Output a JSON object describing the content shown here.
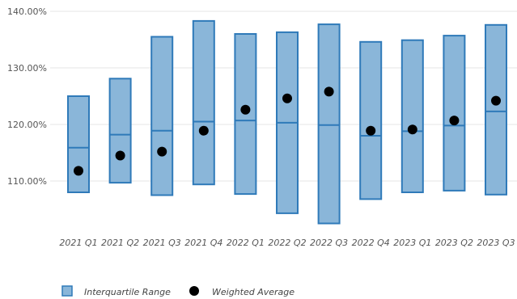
{
  "chart_data": {
    "type": "boxplot",
    "title": "",
    "xlabel": "",
    "ylabel": "",
    "ylim": [
      102,
      140
    ],
    "yticks": [
      110,
      120,
      130,
      140
    ],
    "ytick_labels": [
      "110.00%",
      "120.00%",
      "130.00%",
      "140.00%"
    ],
    "grid": true,
    "legend_position": "bottom-left",
    "categories": [
      "2021 Q1",
      "2021 Q2",
      "2021 Q3",
      "2021 Q4",
      "2022 Q1",
      "2022 Q2",
      "2022 Q3",
      "2022 Q4",
      "2023 Q1",
      "2023 Q2",
      "2023 Q3"
    ],
    "series": [
      {
        "name": "Interquartile Range",
        "low": [
          108.0,
          109.7,
          107.5,
          109.4,
          107.7,
          104.3,
          102.5,
          106.8,
          108.0,
          108.3,
          107.6
        ],
        "median": [
          115.9,
          118.2,
          118.9,
          120.5,
          120.7,
          120.3,
          119.9,
          118.0,
          118.8,
          119.8,
          122.3
        ],
        "high": [
          125.0,
          128.1,
          135.5,
          138.3,
          136.0,
          136.3,
          137.7,
          134.6,
          134.9,
          135.7,
          137.6
        ]
      },
      {
        "name": "Weighted Average",
        "values": [
          111.8,
          114.5,
          115.2,
          118.9,
          122.6,
          124.6,
          125.8,
          118.9,
          119.1,
          120.7,
          124.2
        ]
      }
    ],
    "colors": {
      "box_fill": "#8ab6d9",
      "box_stroke": "#2f7ab9",
      "marker": "#000000",
      "grid": "#e6e6e6"
    }
  }
}
